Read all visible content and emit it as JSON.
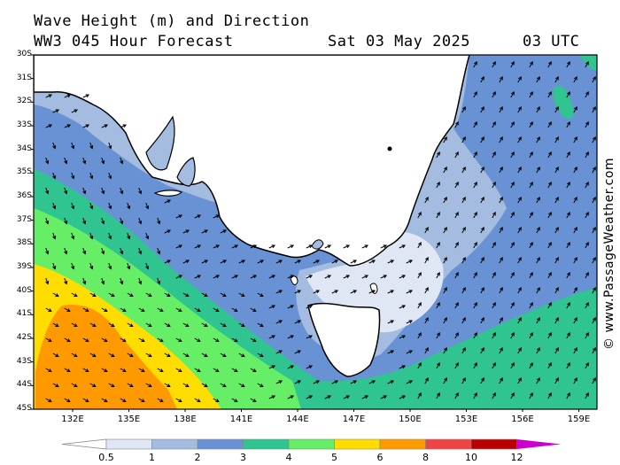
{
  "header": {
    "title": "Wave Height (m) and Direction",
    "model": "WW3 045 Hour Forecast",
    "date": "Sat 03 May 2025",
    "time": "03 UTC"
  },
  "credit": "© www.PassageWeather.com",
  "map": {
    "lat_labels": [
      "30S",
      "31S",
      "32S",
      "33S",
      "34S",
      "35S",
      "36S",
      "37S",
      "38S",
      "39S",
      "40S",
      "41S",
      "42S",
      "43S",
      "44S",
      "45S"
    ],
    "lon_labels": [
      "132E",
      "135E",
      "138E",
      "141E",
      "144E",
      "147E",
      "150E",
      "153E",
      "156E",
      "159E"
    ],
    "land_color": "#ffffff",
    "coast_color": "#000000"
  },
  "legend": {
    "labels": [
      "0.5",
      "1",
      "2",
      "3",
      "4",
      "5",
      "6",
      "8",
      "10",
      "12"
    ],
    "colors": [
      "#dfe6f4",
      "#a4bce0",
      "#6892d4",
      "#2fc490",
      "#66ee66",
      "#ffdd00",
      "#ff9900",
      "#ee4444",
      "#bb0000",
      "#cc00cc"
    ]
  }
}
